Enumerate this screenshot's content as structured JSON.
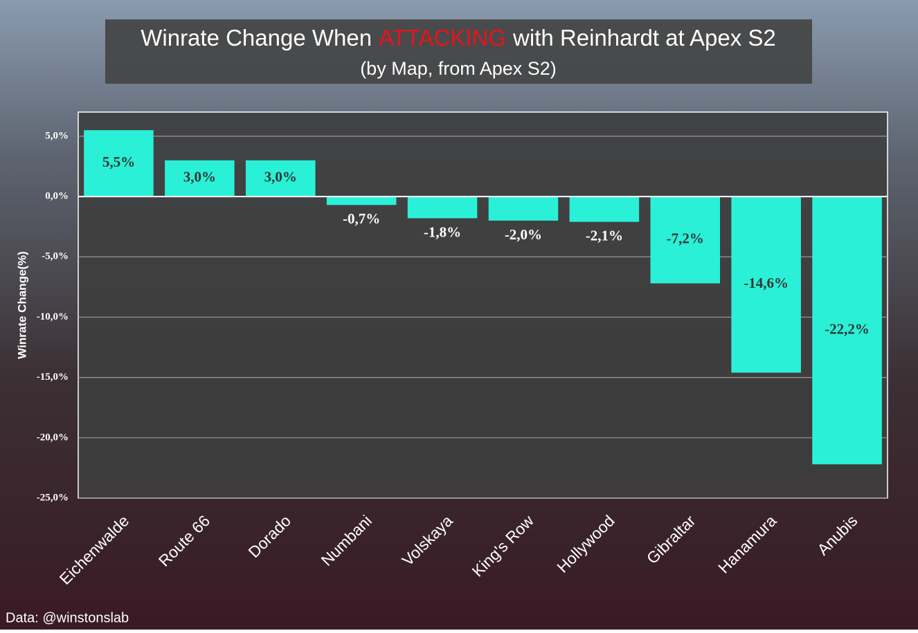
{
  "chart_data": {
    "type": "bar",
    "title_parts": [
      "Winrate Change When",
      "ATTACKING",
      "with Reinhardt at Apex S2"
    ],
    "title_colors": [
      "#ffffff",
      "#e8131c",
      "#ffffff"
    ],
    "subtitle": "(by Map, from Apex S2)",
    "y_label": "Winrate Change(%)",
    "source": "Data: @winstonslab",
    "categories": [
      "Eichenwalde",
      "Route 66",
      "Dorado",
      "Numbani",
      "Volskaya",
      "King's Row",
      "Hollywood",
      "Gibraltar",
      "Hanamura",
      "Anubis"
    ],
    "values": [
      5.5,
      3.0,
      3.0,
      -0.7,
      -1.8,
      -2.0,
      -2.1,
      -7.2,
      -14.6,
      -22.2
    ],
    "value_labels": [
      "5,5%",
      "3,0%",
      "3,0%",
      "-0,7%",
      "-1,8%",
      "-2,0%",
      "-2,1%",
      "-7,2%",
      "-14,6%",
      "-22,2%"
    ],
    "color": "#2af0d8",
    "ylim": [
      -25,
      7
    ],
    "yticks": [
      {
        "value": 5,
        "label": "5,0%"
      },
      {
        "value": 0,
        "label": "0,0%"
      },
      {
        "value": -5,
        "label": "-5,0%"
      },
      {
        "value": -10,
        "label": "-10,0%"
      },
      {
        "value": -15,
        "label": "-15,0%"
      },
      {
        "value": -20,
        "label": "-20,0%"
      },
      {
        "value": -25,
        "label": "-25,0%"
      }
    ],
    "grid": true
  }
}
